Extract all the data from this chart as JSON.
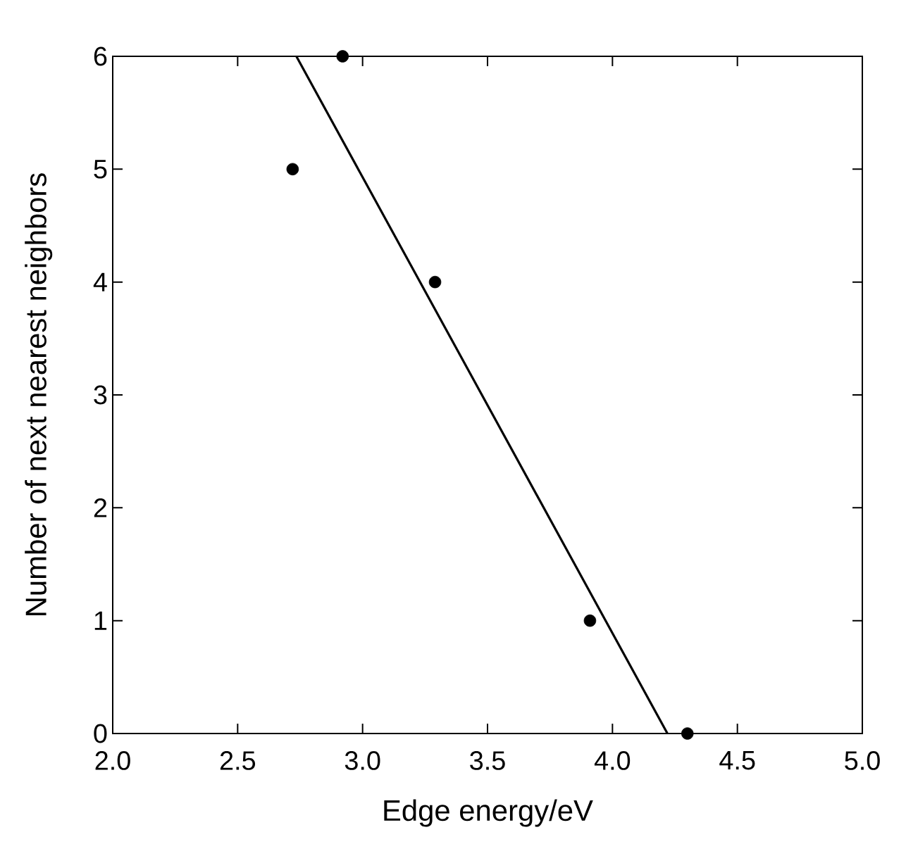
{
  "chart_data": {
    "type": "scatter",
    "xlabel": "Edge energy/eV",
    "ylabel": "Number of next nearest neighbors",
    "xlim": [
      2.0,
      5.0
    ],
    "ylim": [
      0,
      6
    ],
    "xticks": [
      {
        "value": 2.0,
        "label": "2.0"
      },
      {
        "value": 2.5,
        "label": "2.5"
      },
      {
        "value": 3.0,
        "label": "3.0"
      },
      {
        "value": 3.5,
        "label": "3.5"
      },
      {
        "value": 4.0,
        "label": "4.0"
      },
      {
        "value": 4.5,
        "label": "4.5"
      },
      {
        "value": 5.0,
        "label": "5.0"
      }
    ],
    "yticks": [
      0,
      1,
      2,
      3,
      4,
      5,
      6
    ],
    "series": [
      {
        "type": "scatter",
        "color": "#000000",
        "marker": "circle",
        "x": [
          2.72,
          2.92,
          3.29,
          3.91,
          4.3
        ],
        "values": [
          5,
          6,
          4,
          1,
          0
        ]
      },
      {
        "type": "line",
        "color": "#000000",
        "marker": "none",
        "line_style": "solid",
        "x": [
          2.735,
          4.22
        ],
        "values": [
          6,
          0
        ]
      }
    ]
  }
}
